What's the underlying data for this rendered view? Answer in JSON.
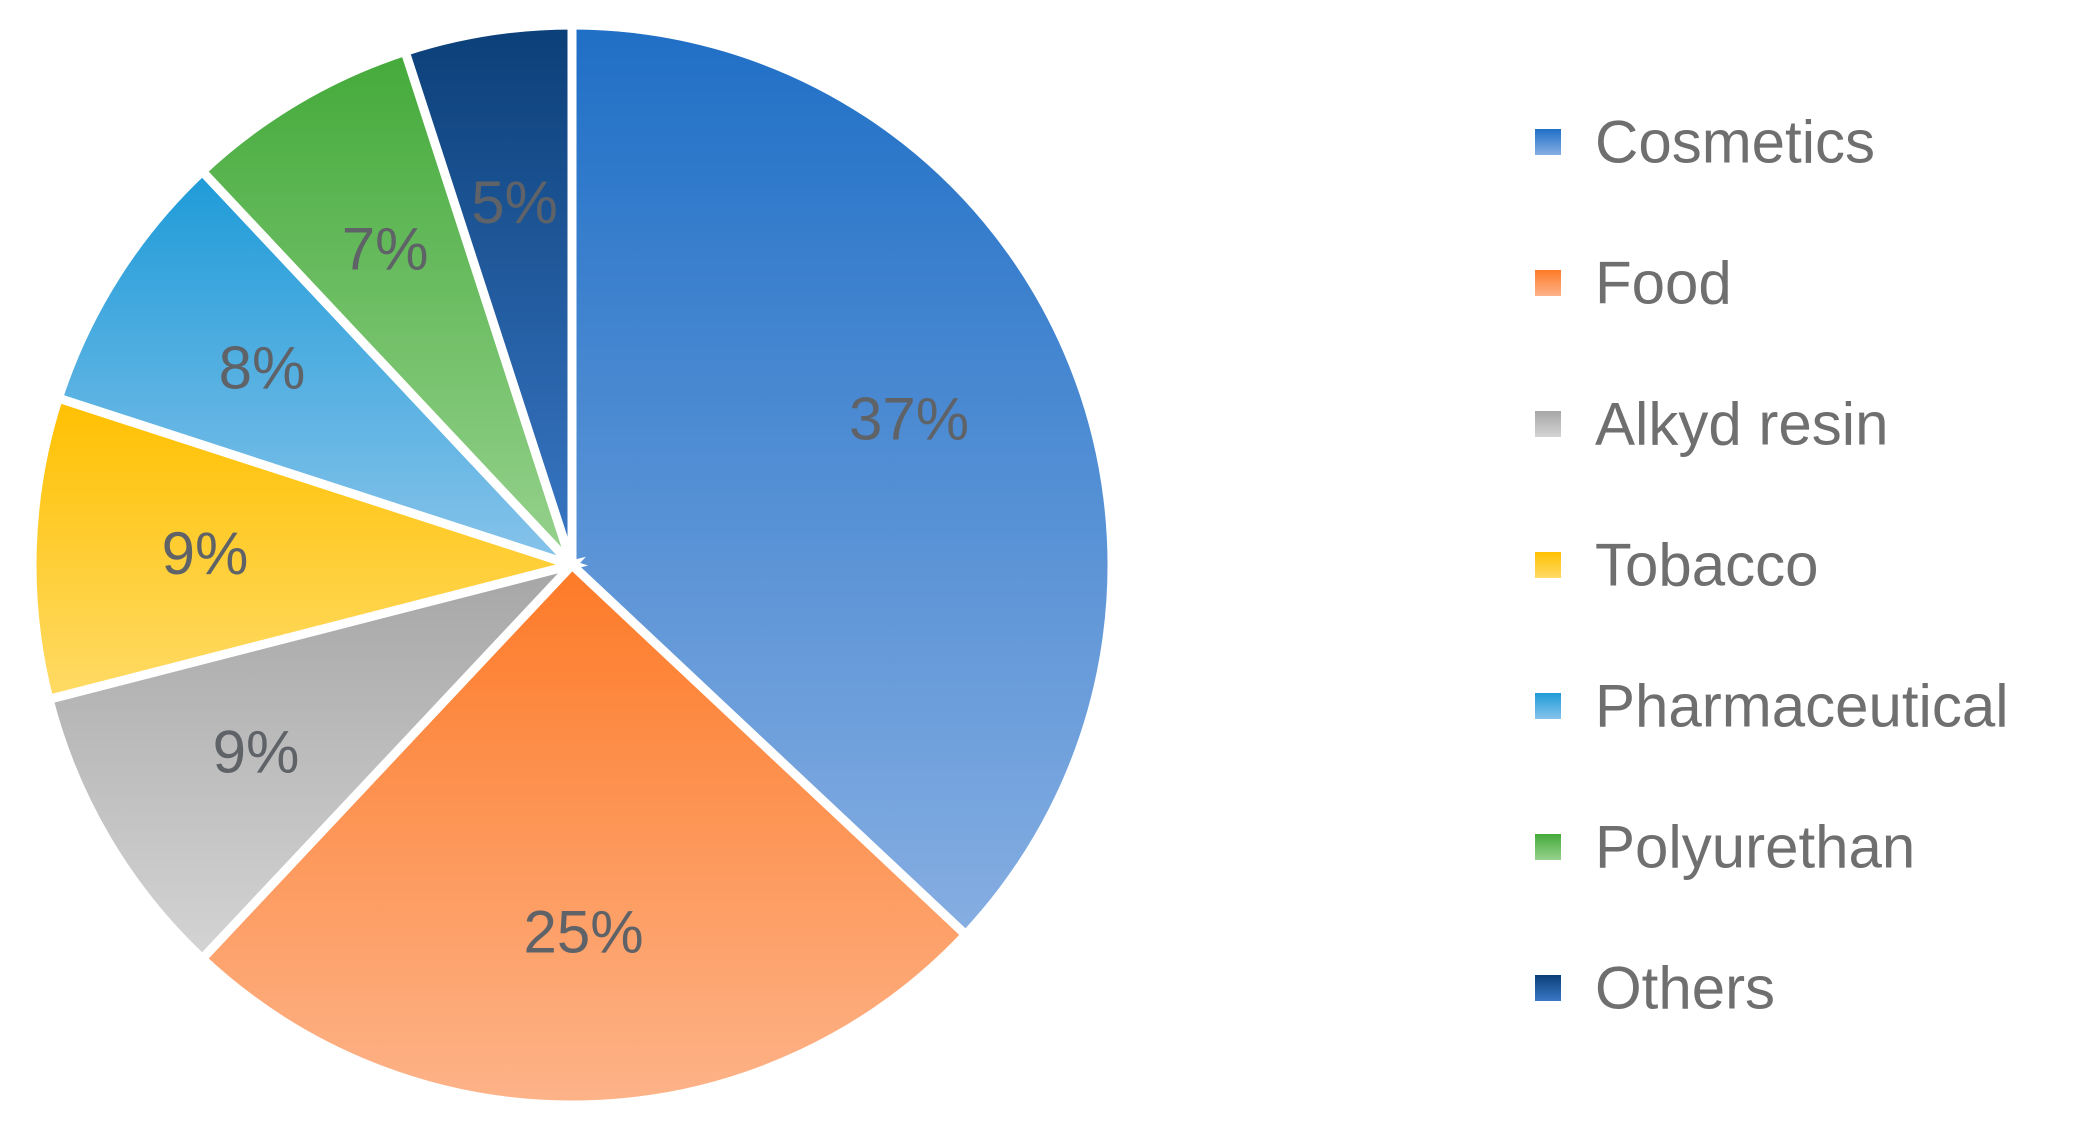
{
  "chart_data": {
    "type": "pie",
    "title": "",
    "start_angle_deg": 0,
    "direction": "clockwise",
    "legend_position": "right",
    "slices": [
      {
        "name": "Cosmetics",
        "value": 37,
        "label": "37%",
        "color_top": "#1f6fc6",
        "color_bottom": "#86aee2"
      },
      {
        "name": "Food",
        "value": 25,
        "label": "25%",
        "color_top": "#fd7a27",
        "color_bottom": "#fdb389"
      },
      {
        "name": "Alkyd resin",
        "value": 9,
        "label": "9%",
        "color_top": "#a6a6a6",
        "color_bottom": "#d4d4d4"
      },
      {
        "name": "Tobacco",
        "value": 9,
        "label": "9%",
        "color_top": "#ffc000",
        "color_bottom": "#ffdb66"
      },
      {
        "name": "Pharmaceutical",
        "value": 8,
        "label": "8%",
        "color_top": "#1e9bd8",
        "color_bottom": "#87c3ea"
      },
      {
        "name": "Polyurethan",
        "value": 7,
        "label": "7%",
        "color_top": "#44aa3a",
        "color_bottom": "#97d28e"
      },
      {
        "name": "Others",
        "value": 5,
        "label": "5%",
        "color_top": "#0b3f78",
        "color_bottom": "#3a78c6"
      }
    ]
  },
  "colors": {
    "slice_border": "#ffffff",
    "label_text": "#5f6368",
    "legend_text": "#6f6f6f"
  }
}
